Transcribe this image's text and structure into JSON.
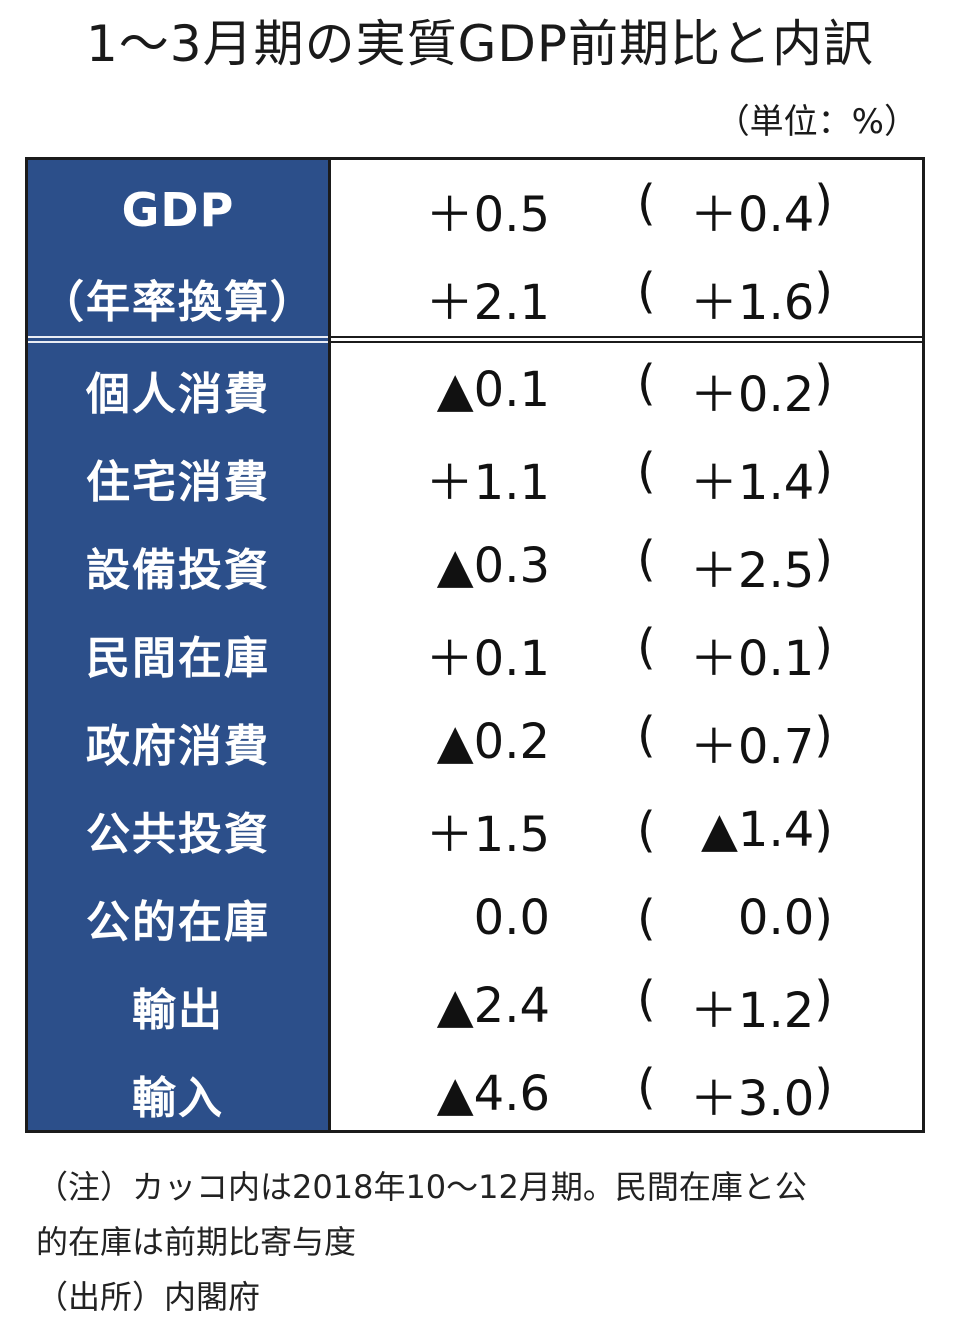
{
  "title": "1〜3月期の実質GDP前期比と内訳",
  "unit": "（単位：%）",
  "rows": [
    {
      "label": "GDP",
      "value": "＋0.5",
      "prev": "＋0.4"
    },
    {
      "label": "（年率換算）",
      "value": "＋2.1",
      "prev": "＋1.6"
    },
    {
      "label": "個人消費",
      "value": "▲0.1",
      "prev": "＋0.2"
    },
    {
      "label": "住宅消費",
      "value": "＋1.1",
      "prev": "＋1.4"
    },
    {
      "label": "設備投資",
      "value": "▲0.3",
      "prev": "＋2.5"
    },
    {
      "label": "民間在庫",
      "value": "＋0.1",
      "prev": "＋0.1"
    },
    {
      "label": "政府消費",
      "value": "▲0.2",
      "prev": "＋0.7"
    },
    {
      "label": "公共投資",
      "value": "＋1.5",
      "prev": "▲1.4"
    },
    {
      "label": "公的在庫",
      "value": "0.0",
      "prev": "0.0"
    },
    {
      "label": "輸出",
      "value": "▲2.4",
      "prev": "＋1.2"
    },
    {
      "label": "輸入",
      "value": "▲4.6",
      "prev": "＋3.0"
    }
  ],
  "notes": {
    "line1": "（注）カッコ内は2018年10〜12月期。民間在庫と公",
    "line2": "的在庫は前期比寄与度",
    "line3": "（出所）内閣府"
  },
  "colors": {
    "label_background": "#2c4f8a",
    "label_text": "#ffffff",
    "border": "#1b1b1b"
  }
}
